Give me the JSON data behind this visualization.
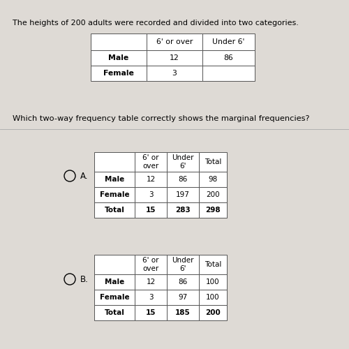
{
  "bg_color": "#dedad5",
  "top_text": "The heights of 200 adults were recorded and divided into two categories.",
  "question_text": "Which two-way frequency table correctly shows the marginal frequencies?",
  "top_table": {
    "headers": [
      "",
      "6' or over",
      "Under 6'"
    ],
    "rows": [
      [
        "Male",
        "12",
        "86"
      ],
      [
        "Female",
        "3",
        ""
      ]
    ]
  },
  "table_a": {
    "label": "A.",
    "headers": [
      "",
      "6' or\nover",
      "Under\n6'",
      "Total"
    ],
    "rows": [
      [
        "Male",
        "12",
        "86",
        "98"
      ],
      [
        "Female",
        "3",
        "197",
        "200"
      ],
      [
        "Total",
        "15",
        "283",
        "298"
      ]
    ]
  },
  "table_b": {
    "label": "B.",
    "headers": [
      "",
      "6' or\nover",
      "Under\n6'",
      "Total"
    ],
    "rows": [
      [
        "Male",
        "12",
        "86",
        "100"
      ],
      [
        "Female",
        "3",
        "97",
        "100"
      ],
      [
        "Total",
        "15",
        "185",
        "200"
      ]
    ]
  }
}
